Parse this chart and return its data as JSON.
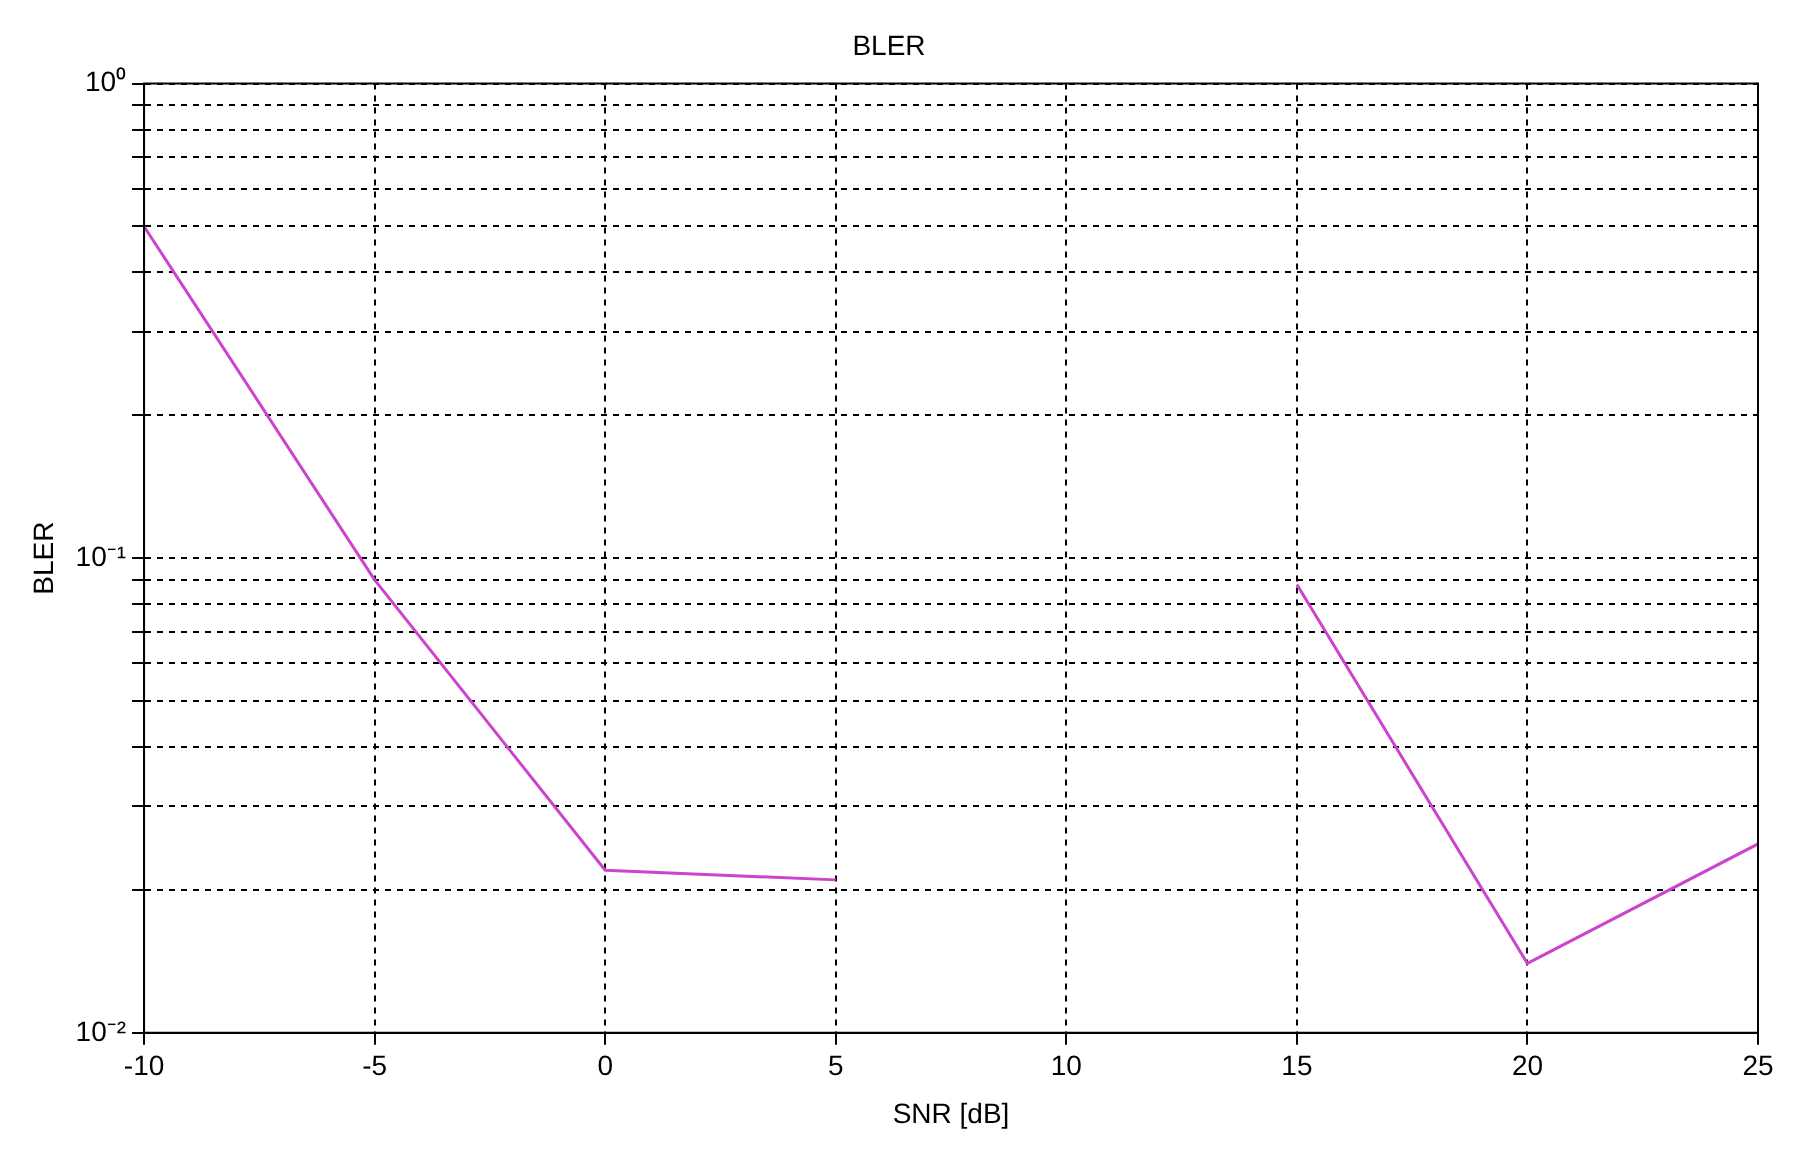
{
  "chart_data": {
    "type": "line",
    "title": "BLER",
    "xlabel": "SNR [dB]",
    "ylabel": "BLER",
    "x": [
      -10,
      -5,
      0,
      5,
      10,
      15,
      20,
      25
    ],
    "series": [
      {
        "color": "#cc44cc",
        "values": [
          0.5,
          0.09,
          0.022,
          0.021,
          null,
          0.088,
          0.014,
          0.025
        ]
      }
    ],
    "log": "y",
    "grid": true,
    "legend": false,
    "marker": "none",
    "line_style": "solid",
    "xlim": [
      -10,
      25
    ],
    "xticks": [
      -10,
      -5,
      0,
      5,
      10,
      15,
      20,
      25
    ],
    "ylim": [
      0.01,
      1
    ],
    "yticks": [
      {
        "value": 0.01,
        "label": "10⁻²"
      },
      {
        "value": 0.02,
        "label": null
      },
      {
        "value": 0.03,
        "label": null
      },
      {
        "value": 0.04,
        "label": null
      },
      {
        "value": 0.05,
        "label": null
      },
      {
        "value": 0.06,
        "label": null
      },
      {
        "value": 0.07,
        "label": null
      },
      {
        "value": 0.08,
        "label": null
      },
      {
        "value": 0.09,
        "label": null
      },
      {
        "value": 0.1,
        "label": "10⁻¹"
      },
      {
        "value": 0.2,
        "label": null
      },
      {
        "value": 0.3,
        "label": null
      },
      {
        "value": 0.4,
        "label": null
      },
      {
        "value": 0.5,
        "label": null
      },
      {
        "value": 0.6,
        "label": null
      },
      {
        "value": 0.7,
        "label": null
      },
      {
        "value": 0.8,
        "label": null
      },
      {
        "value": 0.9,
        "label": null
      },
      {
        "value": 1,
        "label": "10⁰"
      }
    ]
  }
}
